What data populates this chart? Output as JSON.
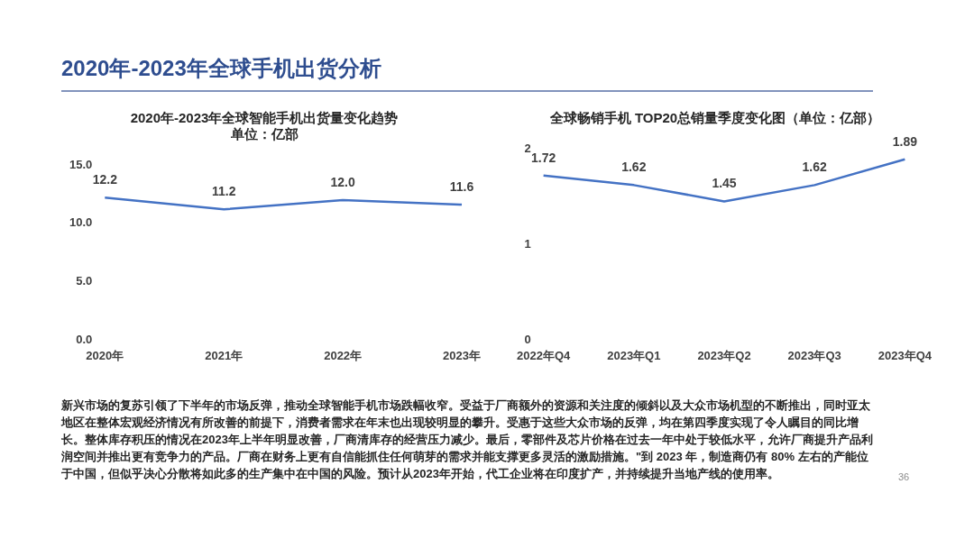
{
  "chart_data": [
    {
      "type": "other",
      "title": "2020年-2023年全球手机出货分析"
    },
    {
      "type": "line",
      "title": "2020年-2023年全球智能手机出货量变化趋势",
      "subtitle": "单位：亿部",
      "categories": [
        "2020年",
        "2021年",
        "2022年",
        "2023年"
      ],
      "series": [
        {
          "color": "#4472c4",
          "values": [
            12.2,
            11.2,
            12.0,
            11.6
          ],
          "value_labels": [
            "12.2",
            "11.2",
            "12.0",
            "11.6"
          ]
        }
      ],
      "ylim": [
        0,
        15
      ],
      "yticks": [
        {
          "value": 0,
          "label": "0.0"
        },
        {
          "value": 5,
          "label": "5.0"
        },
        {
          "value": 10,
          "label": "10.0"
        },
        {
          "value": 15,
          "label": "15.0"
        }
      ],
      "grid": false,
      "legend": false,
      "marker": "none"
    },
    {
      "type": "line",
      "title": "全球畅销手机 TOP20总销量季度变化图（单位：亿部）",
      "categories": [
        "2022年Q4",
        "2023年Q1",
        "2023年Q2",
        "2023年Q3",
        "2023年Q4"
      ],
      "series": [
        {
          "color": "#4472c4",
          "values": [
            1.72,
            1.62,
            1.45,
            1.62,
            1.89
          ]
        }
      ],
      "ylim": [
        0,
        2
      ],
      "yticks": [
        0,
        1,
        2
      ],
      "grid": false,
      "legend": false,
      "marker": "none",
      "data_labels": true
    },
    {
      "type": "other",
      "annotations": [
        "新兴市场的复苏引领了下半年的市场反弹，推动全球智能手机市场跌幅收窄。受益于厂商额外的资源和关注度的倾斜以及大众市场机型的不断推出，同时亚太地区在整体宏观经济情况有所改善的前提下，消费者需求在年末也出现较明显的攀升。受惠于这些大众市场的反弹，均在第四季度实现了令人瞩目的同比增长。整体库存积压的情况在2023年上半年明显改善，厂商清库存的经营压力减少。最后，零部件及芯片价格在过去一年中处于较低水平，允许厂商提升产品利润空间并推出更有竞争力的产品。厂商在财务上更有自信能抓住任何萌芽的需求并能支撑更多灵活的激励措施。\"到 2023 年，制造商仍有 80% 左右的产能位于中国，但似乎决心分散将如此多的生产集中在中国的风险。预计从2023年开始，代工企业将在印度扩产，并持续提升当地产线的使用率。",
        "36"
      ]
    }
  ]
}
